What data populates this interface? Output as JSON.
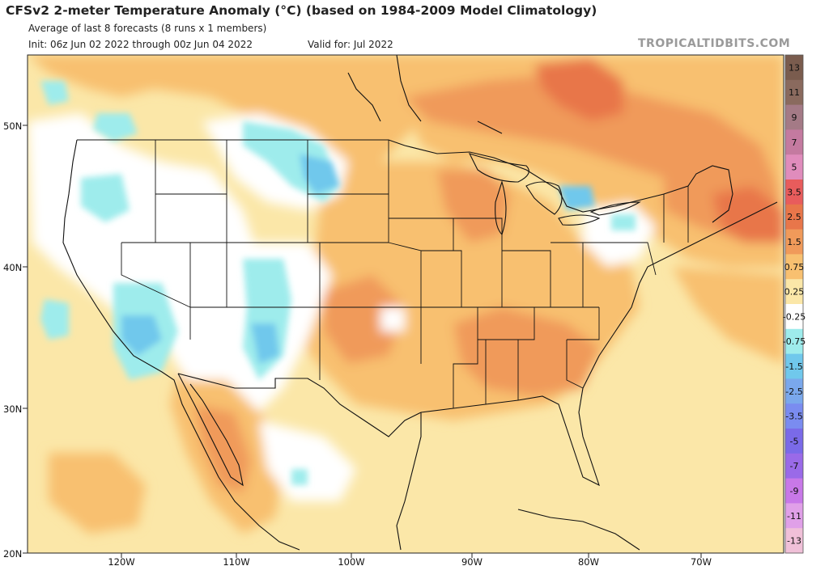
{
  "header": {
    "title": "CFSv2 2-meter Temperature Anomaly (°C) (based on 1984-2009 Model Climatology)",
    "subtitle": "Average of last 8 forecasts (8 runs x 1 members)",
    "init": "Init: 06z Jun 02 2022 through 00z Jun 04 2022",
    "valid": "Valid for: Jul 2022",
    "credit": "TROPICALTIDBITS.COM"
  },
  "map": {
    "lat_labels": [
      "50N",
      "40N",
      "30N",
      "20N"
    ],
    "lon_labels": [
      "120W",
      "110W",
      "100W",
      "90W",
      "80W",
      "70W"
    ]
  },
  "colorbar": {
    "labels": [
      "13",
      "11",
      "9",
      "7",
      "5",
      "3.5",
      "2.5",
      "1.5",
      "0.75",
      "0.25",
      "-0.25",
      "-0.75",
      "-1.5",
      "-2.5",
      "-3.5",
      "-5",
      "-7",
      "-9",
      "-11",
      "-13"
    ],
    "colors": [
      "#7a5c4e",
      "#8a6a5e",
      "#a47a86",
      "#c47aa0",
      "#e08cbc",
      "#e85c5c",
      "#e8764a",
      "#f09a5a",
      "#f8c070",
      "#fbe7a8",
      "#ffffff",
      "#9eecec",
      "#70c8ec",
      "#7aa8ec",
      "#7a8cf0",
      "#7a6ae8",
      "#9a6ae8",
      "#c878e8",
      "#e0a0e8",
      "#f0c0d8"
    ]
  }
}
